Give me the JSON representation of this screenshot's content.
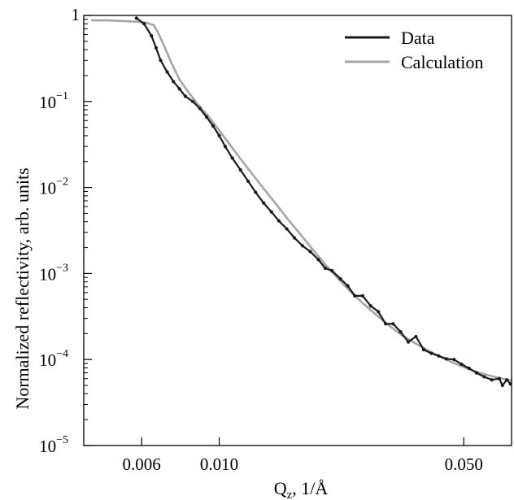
{
  "chart_data": {
    "type": "line",
    "title": "",
    "xlabel": {
      "main": "Q",
      "sub": "z",
      "rest": ", 1/Å"
    },
    "ylabel": "Normalized reflectivity, arb. units",
    "xscale": "log",
    "yscale": "log",
    "xlim": [
      0.0041,
      0.0685
    ],
    "ylim": [
      1e-05,
      1.0
    ],
    "x_ticks": [
      {
        "value": 0.006,
        "label": "0.006"
      },
      {
        "value": 0.01,
        "label": "0.010"
      },
      {
        "value": 0.05,
        "label": "0.050"
      }
    ],
    "y_ticks": [
      {
        "value": 1,
        "base": "1",
        "exp": ""
      },
      {
        "value": 0.1,
        "base": "10",
        "exp": "−1"
      },
      {
        "value": 0.01,
        "base": "10",
        "exp": "−2"
      },
      {
        "value": 0.001,
        "base": "10",
        "exp": "−3"
      },
      {
        "value": 0.0001,
        "base": "10",
        "exp": "−4"
      },
      {
        "value": 1e-05,
        "base": "10",
        "exp": "−5"
      }
    ],
    "legend": {
      "position": "top-right"
    },
    "series": [
      {
        "name": "Data",
        "color": "#1a1a1a",
        "markers": true,
        "points": [
          [
            0.0058,
            0.93
          ],
          [
            0.0061,
            0.8
          ],
          [
            0.0064,
            0.58
          ],
          [
            0.0066,
            0.42
          ],
          [
            0.0068,
            0.3
          ],
          [
            0.0071,
            0.22
          ],
          [
            0.0074,
            0.17
          ],
          [
            0.0077,
            0.14
          ],
          [
            0.008,
            0.115
          ],
          [
            0.0084,
            0.1
          ],
          [
            0.0088,
            0.083
          ],
          [
            0.0092,
            0.066
          ],
          [
            0.0096,
            0.052
          ],
          [
            0.01,
            0.04
          ],
          [
            0.0104,
            0.03
          ],
          [
            0.0109,
            0.022
          ],
          [
            0.0115,
            0.016
          ],
          [
            0.0121,
            0.0118
          ],
          [
            0.0127,
            0.0088
          ],
          [
            0.0134,
            0.0066
          ],
          [
            0.0141,
            0.0052
          ],
          [
            0.0148,
            0.0041
          ],
          [
            0.0156,
            0.0033
          ],
          [
            0.0164,
            0.0026
          ],
          [
            0.0173,
            0.0021
          ],
          [
            0.0182,
            0.0018
          ],
          [
            0.0192,
            0.00145
          ],
          [
            0.0201,
            0.00115
          ],
          [
            0.021,
            0.00108
          ],
          [
            0.0222,
            0.00087
          ],
          [
            0.0233,
            0.00072
          ],
          [
            0.0244,
            0.00055
          ],
          [
            0.0257,
            0.00055
          ],
          [
            0.0271,
            0.00042
          ],
          [
            0.0285,
            0.00036
          ],
          [
            0.0299,
            0.00026
          ],
          [
            0.0314,
            0.00026
          ],
          [
            0.033,
            0.00021
          ],
          [
            0.0347,
            0.00016
          ],
          [
            0.0365,
            0.000185
          ],
          [
            0.0384,
            0.00013
          ],
          [
            0.0404,
            0.000118
          ],
          [
            0.0424,
            0.00011
          ],
          [
            0.0446,
            0.000102
          ],
          [
            0.0469,
            0.0001
          ],
          [
            0.0493,
            8.8e-05
          ],
          [
            0.0518,
            7.9e-05
          ],
          [
            0.0544,
            7e-05
          ],
          [
            0.0572,
            6.3e-05
          ],
          [
            0.0601,
            5.8e-05
          ],
          [
            0.0632,
            6e-05
          ],
          [
            0.0645,
            5e-05
          ],
          [
            0.0664,
            5.8e-05
          ],
          [
            0.068,
            5.2e-05
          ]
        ]
      },
      {
        "name": "Calculation",
        "color": "#a6a6a6",
        "markers": false,
        "points": [
          [
            0.0043,
            0.88
          ],
          [
            0.0048,
            0.875
          ],
          [
            0.0054,
            0.86
          ],
          [
            0.0059,
            0.84
          ],
          [
            0.0062,
            0.82
          ],
          [
            0.0065,
            0.77
          ],
          [
            0.0067,
            0.62
          ],
          [
            0.007,
            0.42
          ],
          [
            0.0073,
            0.28
          ],
          [
            0.0077,
            0.18
          ],
          [
            0.0082,
            0.125
          ],
          [
            0.0087,
            0.092
          ],
          [
            0.0093,
            0.068
          ],
          [
            0.01,
            0.046
          ],
          [
            0.0107,
            0.032
          ],
          [
            0.0115,
            0.0215
          ],
          [
            0.0124,
            0.0145
          ],
          [
            0.0134,
            0.0097
          ],
          [
            0.0145,
            0.0065
          ],
          [
            0.0157,
            0.0043
          ],
          [
            0.017,
            0.0029
          ],
          [
            0.0184,
            0.00195
          ],
          [
            0.0199,
            0.00133
          ],
          [
            0.0216,
            0.00092
          ],
          [
            0.0235,
            0.00064
          ],
          [
            0.0256,
            0.00046
          ],
          [
            0.0279,
            0.00034
          ],
          [
            0.0305,
            0.00025
          ],
          [
            0.0334,
            0.00019
          ],
          [
            0.0366,
            0.000152
          ],
          [
            0.0402,
            0.000123
          ],
          [
            0.0442,
            0.000101
          ],
          [
            0.0487,
            8.5e-05
          ],
          [
            0.0537,
            7.3e-05
          ],
          [
            0.0593,
            6.5e-05
          ],
          [
            0.0655,
            5.9e-05
          ],
          [
            0.0685,
            5.7e-05
          ]
        ]
      }
    ]
  }
}
